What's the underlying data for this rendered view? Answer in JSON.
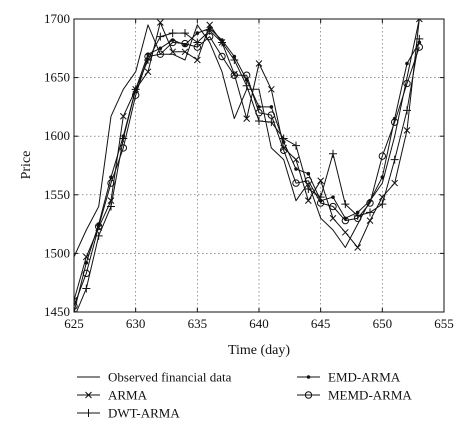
{
  "chart_data": {
    "type": "line",
    "xlabel": "Time (day)",
    "ylabel": "Price",
    "xlim": [
      625,
      655
    ],
    "ylim": [
      1450,
      1700
    ],
    "xticks": [
      625,
      630,
      635,
      640,
      645,
      650,
      655
    ],
    "yticks": [
      1450,
      1500,
      1550,
      1600,
      1650,
      1700
    ],
    "grid": "dotted",
    "legend_position": "bottom",
    "series": [
      {
        "name": "Observed financial data",
        "marker": "none",
        "x": [
          625,
          626,
          627,
          628,
          629,
          630,
          631,
          632,
          633,
          634,
          635,
          636,
          637,
          638,
          639,
          640,
          641,
          642,
          643,
          644,
          645,
          646,
          647,
          648,
          649,
          650,
          651,
          652,
          653
        ],
        "y": [
          1497,
          1520,
          1540,
          1617,
          1640,
          1655,
          1695,
          1670,
          1670,
          1665,
          1695,
          1680,
          1655,
          1615,
          1640,
          1640,
          1590,
          1580,
          1545,
          1560,
          1530,
          1520,
          1505,
          1525,
          1545,
          1560,
          1600,
          1650,
          1700
        ]
      },
      {
        "name": "ARMA",
        "marker": "x",
        "x": [
          625,
          626,
          627,
          628,
          629,
          630,
          631,
          632,
          633,
          634,
          635,
          636,
          637,
          638,
          639,
          640,
          641,
          642,
          643,
          644,
          645,
          646,
          647,
          648,
          649,
          650,
          651,
          652,
          653
        ],
        "y": [
          1460,
          1497,
          1522,
          1545,
          1617,
          1640,
          1655,
          1697,
          1672,
          1672,
          1665,
          1695,
          1680,
          1653,
          1615,
          1662,
          1640,
          1590,
          1580,
          1545,
          1562,
          1530,
          1518,
          1505,
          1528,
          1548,
          1560,
          1605,
          1700
        ]
      },
      {
        "name": "DWT-ARMA",
        "marker": "+",
        "x": [
          625,
          626,
          627,
          628,
          629,
          630,
          631,
          632,
          633,
          634,
          635,
          636,
          637,
          638,
          639,
          640,
          641,
          642,
          643,
          644,
          645,
          646,
          647,
          648,
          649,
          650,
          651,
          652,
          653
        ],
        "y": [
          1445,
          1470,
          1515,
          1540,
          1598,
          1640,
          1665,
          1685,
          1688,
          1688,
          1680,
          1690,
          1680,
          1665,
          1643,
          1613,
          1612,
          1598,
          1592,
          1555,
          1548,
          1585,
          1542,
          1532,
          1535,
          1542,
          1580,
          1622,
          1683
        ]
      },
      {
        "name": "EMD-ARMA",
        "marker": "dot",
        "x": [
          625,
          626,
          627,
          628,
          629,
          630,
          631,
          632,
          633,
          634,
          635,
          636,
          637,
          638,
          639,
          640,
          641,
          642,
          643,
          644,
          645,
          646,
          647,
          648,
          649,
          650,
          651,
          652,
          653
        ],
        "y": [
          1450,
          1492,
          1525,
          1565,
          1600,
          1640,
          1670,
          1675,
          1682,
          1678,
          1688,
          1692,
          1682,
          1668,
          1648,
          1625,
          1625,
          1595,
          1572,
          1568,
          1545,
          1548,
          1530,
          1535,
          1545,
          1565,
          1615,
          1662,
          1680
        ]
      },
      {
        "name": "MEMD-ARMA",
        "marker": "circle",
        "x": [
          625,
          626,
          627,
          628,
          629,
          630,
          631,
          632,
          633,
          634,
          635,
          636,
          637,
          638,
          639,
          640,
          641,
          642,
          643,
          644,
          645,
          646,
          647,
          648,
          649,
          650,
          651,
          652,
          653
        ],
        "y": [
          1455,
          1483,
          1523,
          1560,
          1590,
          1635,
          1668,
          1670,
          1680,
          1679,
          1676,
          1685,
          1668,
          1652,
          1652,
          1620,
          1618,
          1588,
          1560,
          1562,
          1543,
          1540,
          1528,
          1530,
          1543,
          1583,
          1612,
          1645,
          1676
        ]
      }
    ]
  }
}
